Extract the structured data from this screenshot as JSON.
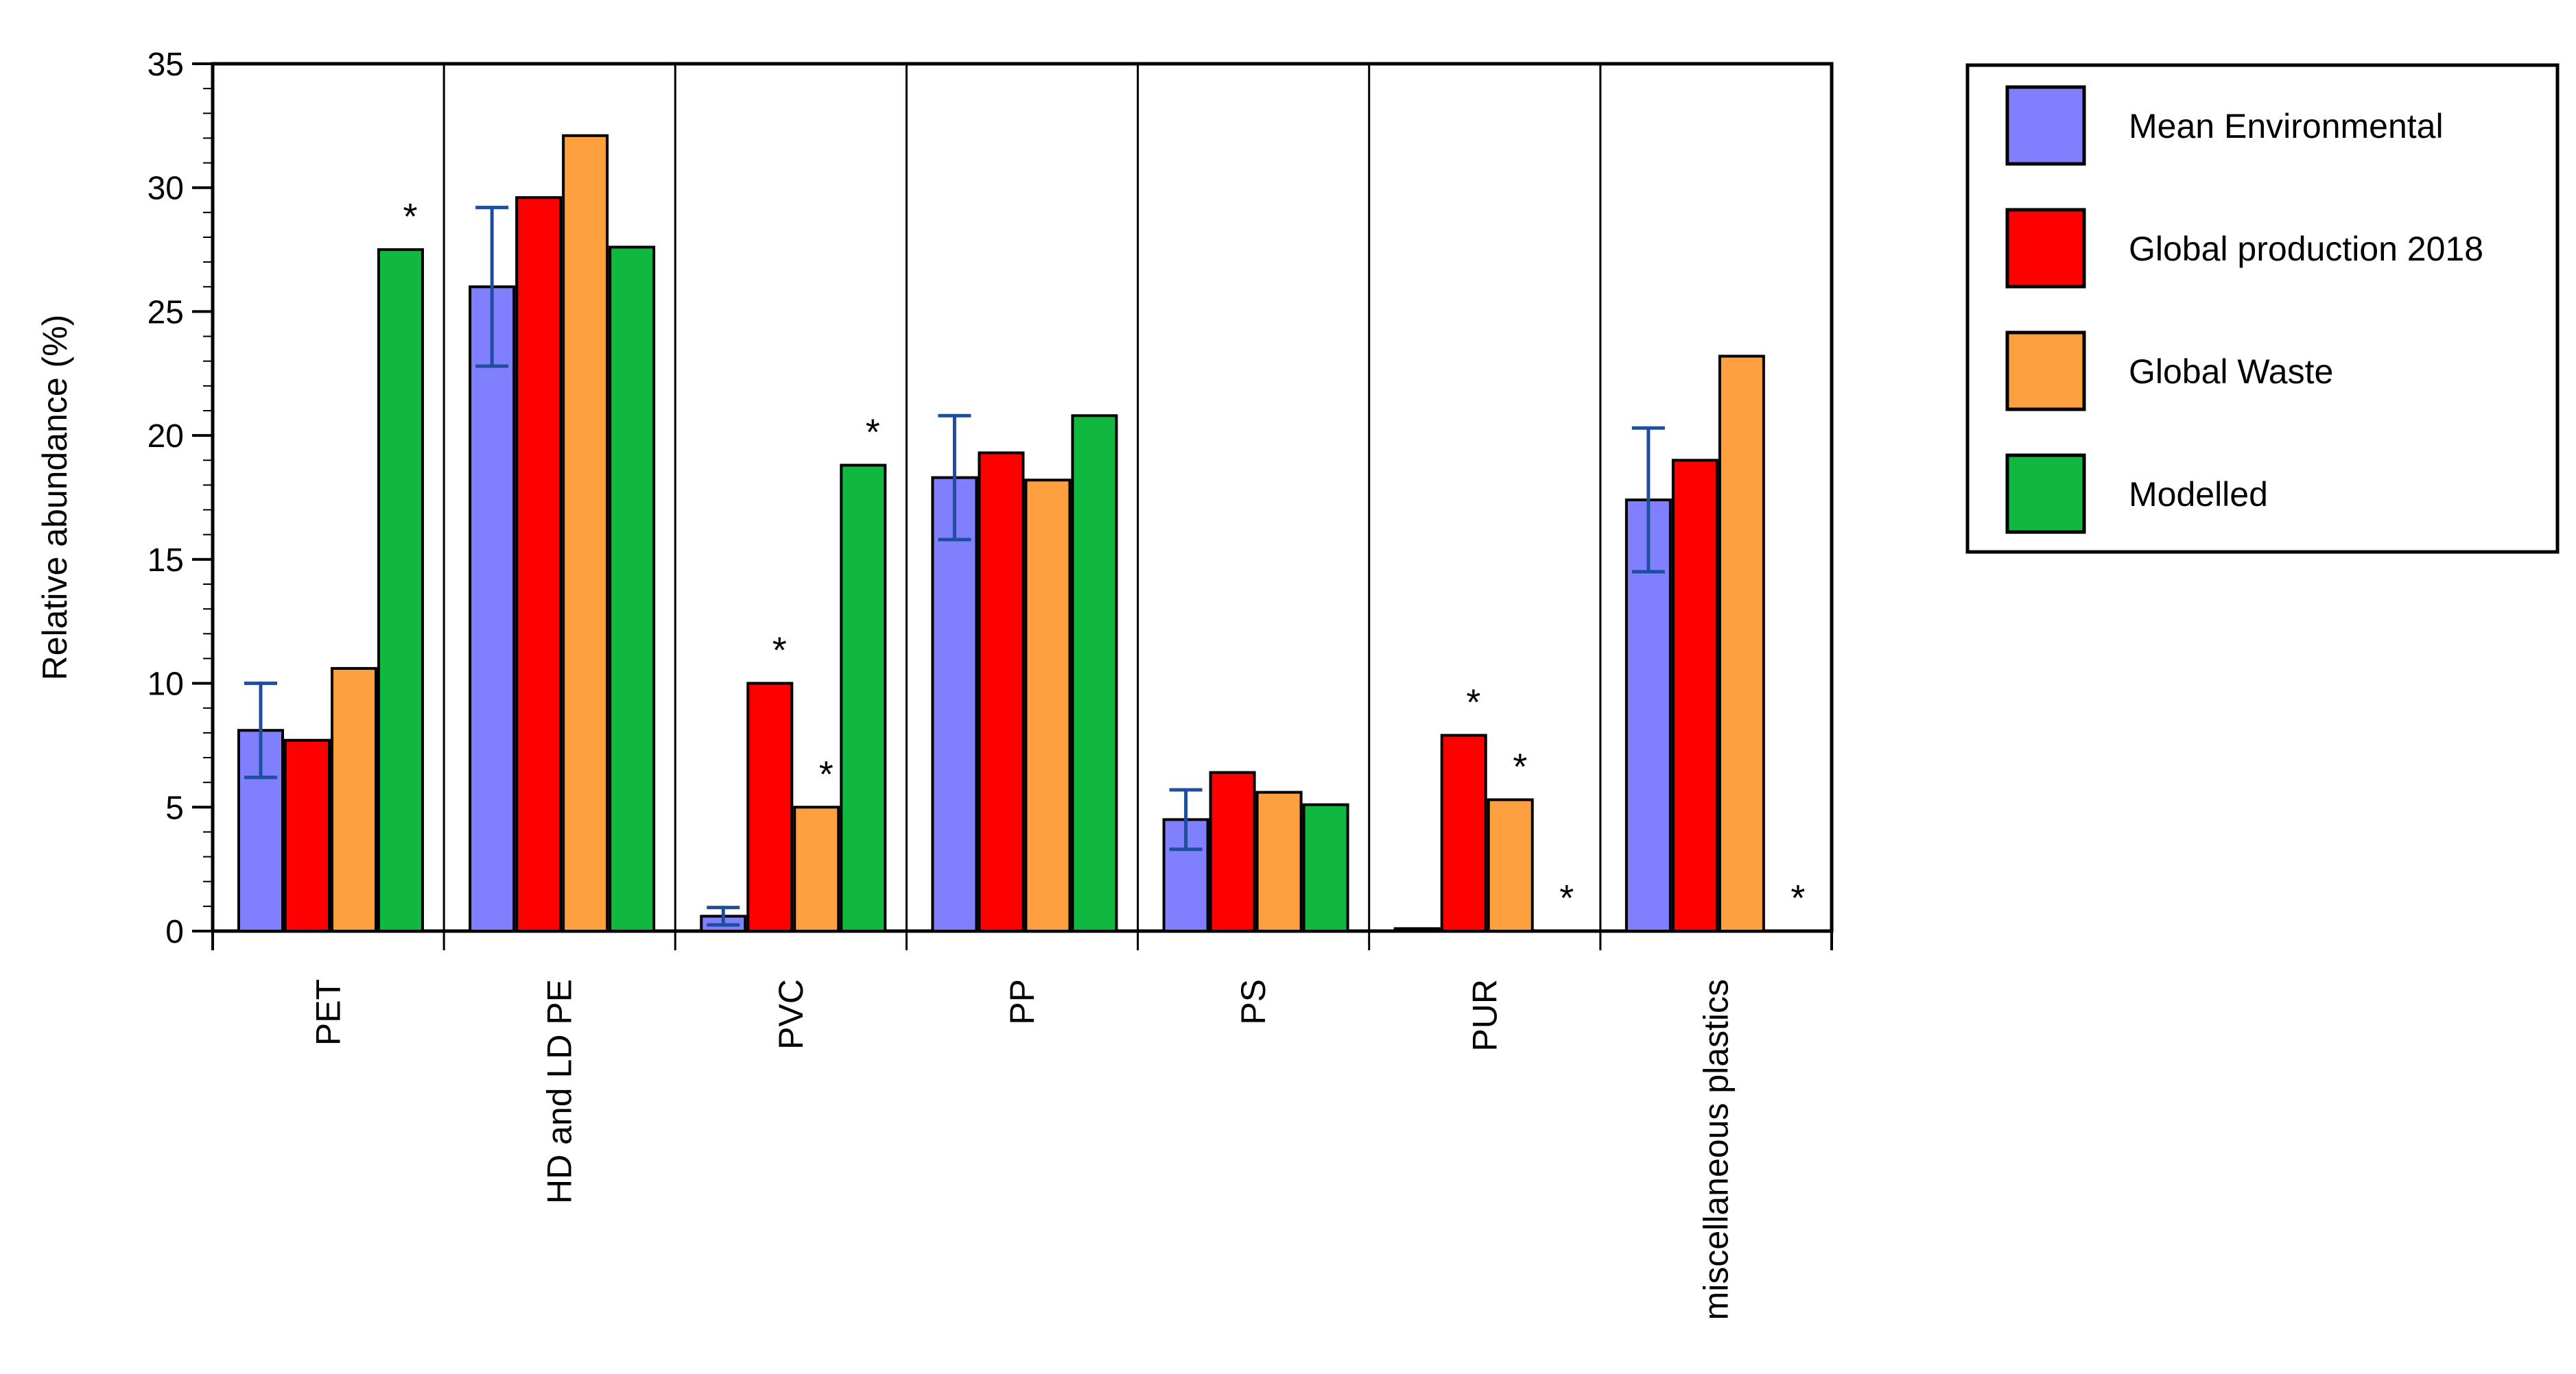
{
  "chart_data": {
    "type": "bar",
    "categories": [
      "PET",
      "HD and LD PE",
      "PVC",
      "PP",
      "PS",
      "PUR",
      "miscellaneous plastics"
    ],
    "series": [
      {
        "name": "Mean Environmental",
        "color": "#8080ff",
        "values": [
          8.1,
          26.0,
          0.6,
          18.3,
          4.5,
          0.1,
          17.4
        ],
        "error": [
          1.9,
          3.2,
          0.35,
          2.5,
          1.2,
          0.0,
          2.9
        ]
      },
      {
        "name": "Global production 2018",
        "color": "#ff0000",
        "values": [
          7.7,
          29.6,
          10.0,
          19.3,
          6.4,
          7.9,
          19.0
        ],
        "significance": [
          "",
          "",
          "*",
          "",
          "",
          "*",
          ""
        ]
      },
      {
        "name": "Global Waste",
        "color": "#ffa040",
        "values": [
          10.6,
          32.1,
          5.0,
          18.2,
          5.6,
          5.3,
          23.2
        ],
        "significance": [
          "",
          "",
          "*",
          "",
          "",
          "*",
          ""
        ]
      },
      {
        "name": "Modelled",
        "color": "#10b840",
        "values": [
          27.5,
          27.6,
          18.8,
          20.8,
          5.1,
          0.0,
          0.0
        ],
        "significance": [
          "*",
          "",
          "*",
          "",
          "",
          "*",
          "*"
        ]
      }
    ],
    "ylabel": "Relative abundance (%)",
    "ylim": [
      0,
      35
    ],
    "yticks": [
      0,
      5,
      10,
      15,
      20,
      25,
      30,
      35
    ],
    "ytick_labels": [
      "0",
      "5",
      "10",
      "15",
      "20",
      "25",
      "30",
      "35"
    ],
    "grid": false,
    "legend": "outside-top-right",
    "error_bar_color": "#1f4e9c"
  }
}
